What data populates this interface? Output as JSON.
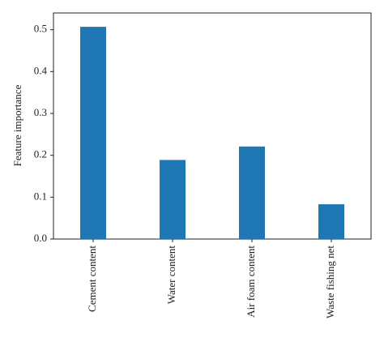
{
  "chart_data": {
    "type": "bar",
    "title": "",
    "xlabel": "",
    "ylabel": "Feature importance",
    "categories": [
      "Cement content",
      "Water content",
      "Air foam content",
      "Waste fishing net"
    ],
    "values": [
      0.507,
      0.189,
      0.221,
      0.083
    ],
    "ylim": [
      0,
      0.54
    ],
    "yticks": [
      0.0,
      0.1,
      0.2,
      0.3,
      0.4,
      0.5
    ],
    "ytick_labels": [
      "0.0",
      "0.1",
      "0.2",
      "0.3",
      "0.4",
      "0.5"
    ],
    "bar_color": "#1f77b4",
    "grid": false,
    "legend": "none"
  }
}
